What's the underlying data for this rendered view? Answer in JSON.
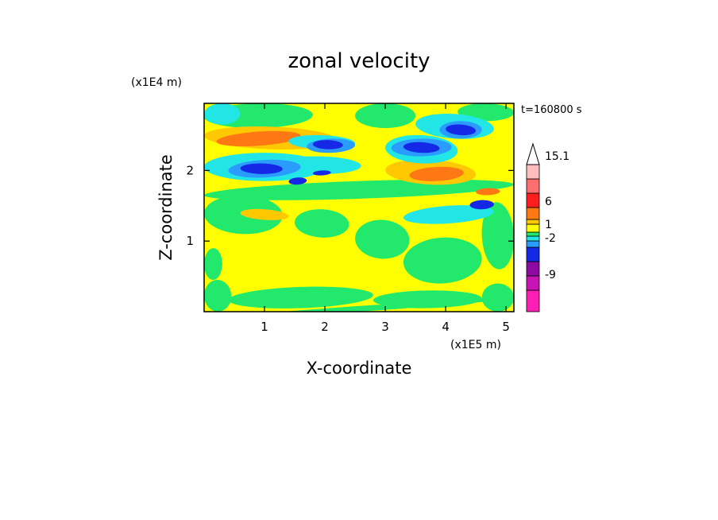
{
  "chart_data": {
    "type": "heatmap",
    "title": "zonal velocity",
    "xlabel": "X-coordinate",
    "ylabel": "Z-coordinate",
    "x_unit": "(x1E5 m)",
    "y_unit": "(x1E4 m)",
    "time_label": "t=160800 s",
    "xlim": [
      0,
      5.13
    ],
    "ylim": [
      0,
      2.95
    ],
    "x_ticks": [
      1,
      2,
      3,
      4,
      5
    ],
    "x_tick_labels": [
      "1",
      "2",
      "3",
      "4",
      "5"
    ],
    "y_ticks": [
      1,
      2
    ],
    "y_tick_labels": [
      "1",
      "2"
    ],
    "background_level_color": "#ffff00",
    "regions": [
      {
        "color": "#22e86b",
        "x": [
          0.0,
          5.13
        ],
        "z": [
          0.0,
          0.08
        ]
      },
      {
        "color": "#22e86b",
        "x": [
          0.0,
          0.45
        ],
        "z": [
          0.0,
          0.45
        ]
      },
      {
        "color": "#22e86b",
        "x": [
          0.4,
          2.8
        ],
        "z": [
          0.05,
          0.35
        ]
      },
      {
        "color": "#22e86b",
        "x": [
          2.8,
          4.6
        ],
        "z": [
          0.05,
          0.3
        ]
      },
      {
        "color": "#22e86b",
        "x": [
          4.6,
          5.13
        ],
        "z": [
          0.0,
          0.4
        ]
      },
      {
        "color": "#22e86b",
        "x": [
          0.0,
          0.3
        ],
        "z": [
          0.45,
          0.9
        ]
      },
      {
        "color": "#22e86b",
        "x": [
          0.0,
          1.3
        ],
        "z": [
          1.1,
          1.65
        ]
      },
      {
        "color": "#22e86b",
        "x": [
          1.5,
          2.4
        ],
        "z": [
          1.05,
          1.45
        ]
      },
      {
        "color": "#22e86b",
        "x": [
          2.5,
          3.4
        ],
        "z": [
          0.75,
          1.3
        ]
      },
      {
        "color": "#22e86b",
        "x": [
          3.3,
          4.6
        ],
        "z": [
          0.4,
          1.05
        ]
      },
      {
        "color": "#22e86b",
        "x": [
          4.6,
          5.13
        ],
        "z": [
          0.6,
          1.55
        ]
      },
      {
        "color": "#22e86b",
        "x": [
          0.0,
          5.13
        ],
        "z": [
          1.6,
          1.85
        ]
      },
      {
        "color": "#22e86b",
        "x": [
          0.0,
          1.8
        ],
        "z": [
          2.6,
          2.95
        ]
      },
      {
        "color": "#22e86b",
        "x": [
          2.5,
          3.5
        ],
        "z": [
          2.6,
          2.95
        ]
      },
      {
        "color": "#22e86b",
        "x": [
          4.2,
          5.13
        ],
        "z": [
          2.7,
          2.95
        ]
      },
      {
        "color": "#ffc800",
        "x": [
          0.0,
          2.2
        ],
        "z": [
          2.3,
          2.62
        ]
      },
      {
        "color": "#ffc800",
        "x": [
          3.0,
          4.5
        ],
        "z": [
          1.8,
          2.15
        ]
      },
      {
        "color": "#ffc800",
        "x": [
          0.6,
          1.4
        ],
        "z": [
          1.3,
          1.45
        ]
      },
      {
        "color": "#ff7814",
        "x": [
          0.2,
          1.6
        ],
        "z": [
          2.35,
          2.55
        ]
      },
      {
        "color": "#ff7814",
        "x": [
          3.4,
          4.3
        ],
        "z": [
          1.85,
          2.05
        ]
      },
      {
        "color": "#ff7814",
        "x": [
          4.5,
          4.9
        ],
        "z": [
          1.65,
          1.75
        ]
      },
      {
        "color": "#22e6e6",
        "x": [
          0.0,
          0.6
        ],
        "z": [
          2.65,
          2.95
        ]
      },
      {
        "color": "#22e6e6",
        "x": [
          0.0,
          2.0
        ],
        "z": [
          1.85,
          2.25
        ]
      },
      {
        "color": "#22e6e6",
        "x": [
          1.2,
          2.6
        ],
        "z": [
          1.95,
          2.2
        ]
      },
      {
        "color": "#22e6e6",
        "x": [
          1.4,
          2.5
        ],
        "z": [
          2.3,
          2.5
        ]
      },
      {
        "color": "#22e6e6",
        "x": [
          3.0,
          4.2
        ],
        "z": [
          2.1,
          2.5
        ]
      },
      {
        "color": "#22e6e6",
        "x": [
          3.5,
          4.8
        ],
        "z": [
          2.45,
          2.8
        ]
      },
      {
        "color": "#22e6e6",
        "x": [
          3.3,
          4.8
        ],
        "z": [
          1.25,
          1.5
        ]
      },
      {
        "color": "#2a9cff",
        "x": [
          0.4,
          1.6
        ],
        "z": [
          1.9,
          2.15
        ]
      },
      {
        "color": "#2a9cff",
        "x": [
          1.7,
          2.5
        ],
        "z": [
          2.25,
          2.45
        ]
      },
      {
        "color": "#2a9cff",
        "x": [
          3.1,
          4.1
        ],
        "z": [
          2.2,
          2.45
        ]
      },
      {
        "color": "#2a9cff",
        "x": [
          3.9,
          4.6
        ],
        "z": [
          2.45,
          2.7
        ]
      },
      {
        "color": "#1428e6",
        "x": [
          0.6,
          1.3
        ],
        "z": [
          1.95,
          2.1
        ]
      },
      {
        "color": "#1428e6",
        "x": [
          1.8,
          2.3
        ],
        "z": [
          2.3,
          2.43
        ]
      },
      {
        "color": "#1428e6",
        "x": [
          3.3,
          3.9
        ],
        "z": [
          2.25,
          2.4
        ]
      },
      {
        "color": "#1428e6",
        "x": [
          4.0,
          4.5
        ],
        "z": [
          2.5,
          2.65
        ]
      },
      {
        "color": "#1428e6",
        "x": [
          1.4,
          1.7
        ],
        "z": [
          1.8,
          1.9
        ]
      },
      {
        "color": "#1428e6",
        "x": [
          1.8,
          2.1
        ],
        "z": [
          1.93,
          2.0
        ]
      },
      {
        "color": "#1428e6",
        "x": [
          4.4,
          4.8
        ],
        "z": [
          1.45,
          1.58
        ]
      }
    ],
    "colorbar": {
      "colors": [
        "#ff1eb4",
        "#c814b4",
        "#8c0aa0",
        "#1428e6",
        "#2a9cff",
        "#22e6e6",
        "#22e86b",
        "#ffff00",
        "#ffc800",
        "#ff7814",
        "#ff1e1e",
        "#ff6e6e",
        "#ffbebe"
      ],
      "labels": [
        "15.1",
        "6",
        "1",
        "-2",
        "-9"
      ]
    }
  }
}
